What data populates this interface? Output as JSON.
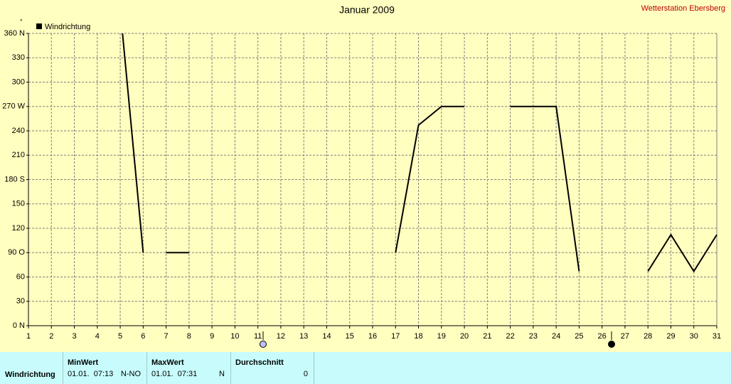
{
  "chart_data": {
    "type": "line",
    "title": "Januar 2009",
    "subtitle": "Wetterstation Ebersberg",
    "y_label": "°",
    "series": [
      {
        "name": "Windrichtung",
        "color": "#000000",
        "x": [
          5.1,
          6,
          6.5,
          7,
          8,
          12.5,
          17,
          18,
          19,
          20,
          21,
          22,
          23,
          24,
          25,
          26.5,
          28,
          29,
          30,
          31
        ],
        "values": [
          360,
          90,
          null,
          90,
          90,
          null,
          90,
          247,
          270,
          270,
          null,
          270,
          270,
          270,
          67,
          null,
          67,
          112,
          67,
          112
        ]
      }
    ],
    "xlim": [
      1,
      31
    ],
    "xticks": [
      1,
      2,
      3,
      4,
      5,
      6,
      7,
      8,
      9,
      10,
      11,
      12,
      13,
      14,
      15,
      16,
      17,
      18,
      19,
      20,
      21,
      22,
      23,
      24,
      25,
      26,
      27,
      28,
      29,
      30,
      31
    ],
    "ylim": [
      0,
      360
    ],
    "yticks": [
      {
        "value": 0,
        "label": "0 N"
      },
      30,
      60,
      {
        "value": 90,
        "label": "90 O"
      },
      120,
      150,
      {
        "value": 180,
        "label": "180 S"
      },
      210,
      240,
      {
        "value": 270,
        "label": "270 W"
      },
      300,
      330,
      {
        "value": 360,
        "label": "360 N"
      }
    ],
    "grid": true,
    "legend": "top-left"
  },
  "table": {
    "headers": [
      "MinWert",
      "MaxWert",
      "Durchschnitt"
    ],
    "rows": [
      [
        "Windrichtung",
        "01.01.  07:13",
        "N-NO",
        "01.01.  07:31",
        "N",
        "0"
      ]
    ]
  }
}
